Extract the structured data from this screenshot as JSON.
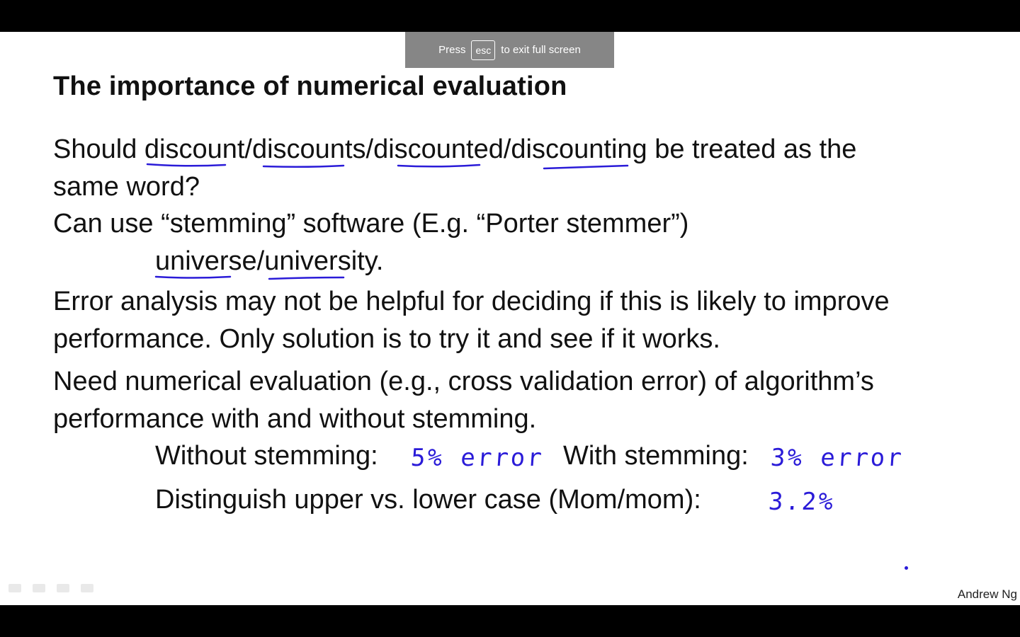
{
  "banner": {
    "press": "Press",
    "key": "esc",
    "rest": "to exit full screen"
  },
  "slide": {
    "title": "The importance of numerical evaluation",
    "lines": [
      "Should discount/discounts/discounted/discounting be treated as the",
      "same word?",
      "Can use “stemming” software (E.g. “Porter stemmer”)",
      "universe/university.",
      "Error analysis may not be helpful for deciding if this is likely to improve",
      "performance. Only solution is to try it and see if it works.",
      "Need numerical evaluation (e.g., cross validation error) of algorithm’s",
      "performance with and without stemming.",
      "Without stemming:",
      "With stemming:",
      "Distinguish upper vs. lower case (Mom/mom):"
    ],
    "handwritten": {
      "without_stemming": "5% error",
      "with_stemming": "3% error",
      "case": "3.2%"
    },
    "author": "Andrew Ng"
  },
  "colors": {
    "ink": "#2a1bd8",
    "banner": "#808080"
  }
}
